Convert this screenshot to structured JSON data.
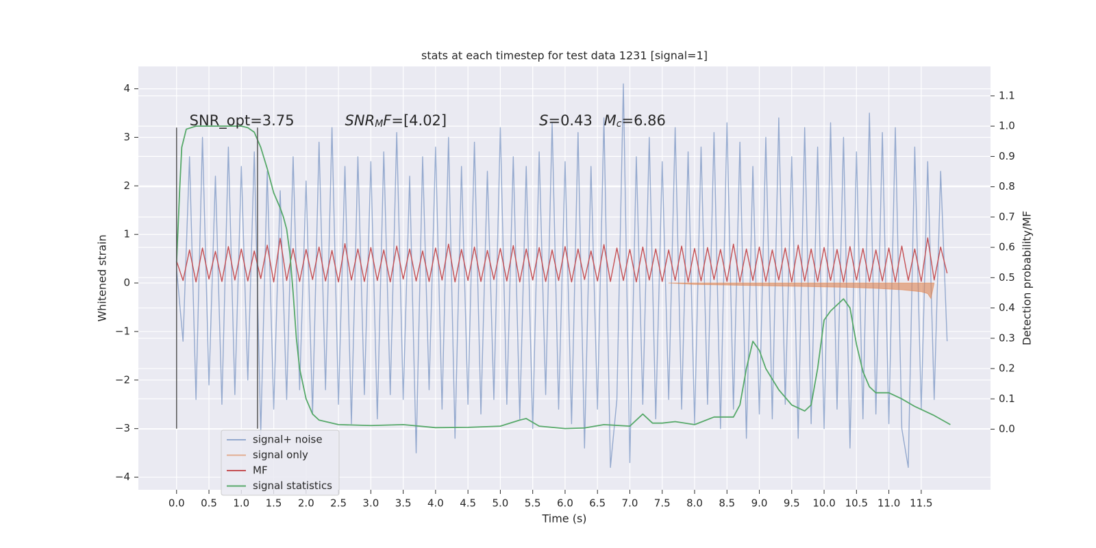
{
  "chart_data": {
    "type": "line",
    "title": "stats at each timestep for test data 1231 [signal=1]",
    "xlabel": "Time (s)",
    "ylabel": "Whitened strain",
    "y2label": "Detection probability/MF",
    "xlim": [
      -0.59,
      12.57
    ],
    "ylim": [
      -4.26,
      4.46
    ],
    "y2lim": [
      -0.2,
      1.197
    ],
    "xticks": [
      {
        "value": 0,
        "label": "0.0"
      },
      0.5,
      {
        "value": 1,
        "label": "1.0"
      },
      1.5,
      {
        "value": 2,
        "label": "2.0"
      },
      2.5,
      {
        "value": 3,
        "label": "3.0"
      },
      3.5,
      {
        "value": 4,
        "label": "4.0"
      },
      4.5,
      {
        "value": 5,
        "label": "5.0"
      },
      5.5,
      {
        "value": 6,
        "label": "6.0"
      },
      6.5,
      {
        "value": 7,
        "label": "7.0"
      },
      7.5,
      {
        "value": 8,
        "label": "8.0"
      },
      8.5,
      {
        "value": 9,
        "label": "9.0"
      },
      9.5,
      {
        "value": 10,
        "label": "10.0"
      },
      10.5,
      {
        "value": 11,
        "label": "11.0"
      },
      11.5
    ],
    "yticks": [
      {
        "value": -4,
        "label": "−4"
      },
      {
        "value": -3,
        "label": "−3"
      },
      {
        "value": -2,
        "label": "−2"
      },
      {
        "value": -1,
        "label": "−1"
      },
      0,
      1,
      2,
      3,
      4
    ],
    "y2ticks": [
      {
        "value": 0,
        "label": "0.0"
      },
      0.1,
      0.2,
      0.3,
      0.4,
      0.5,
      0.6,
      0.7,
      0.8,
      0.9,
      {
        "value": 1,
        "label": "1.0"
      },
      1.1
    ],
    "grid": true,
    "legend": "lower left",
    "x": [
      0,
      0.1,
      0.2,
      0.3,
      0.4,
      0.5,
      0.6,
      0.7,
      0.8,
      0.9,
      1,
      1.1,
      1.2,
      1.3,
      1.4,
      1.5,
      1.6,
      1.7,
      1.8,
      1.9,
      2,
      2.1,
      2.2,
      2.3,
      2.4,
      2.5,
      2.6,
      2.7,
      2.8,
      2.9,
      3,
      3.1,
      3.2,
      3.3,
      3.4,
      3.5,
      3.6,
      3.7,
      3.8,
      3.9,
      4,
      4.1,
      4.2,
      4.3,
      4.4,
      4.5,
      4.6,
      4.7,
      4.8,
      4.9,
      5,
      5.1,
      5.2,
      5.3,
      5.4,
      5.5,
      5.6,
      5.7,
      5.8,
      5.9,
      6,
      6.1,
      6.2,
      6.3,
      6.4,
      6.5,
      6.6,
      6.7,
      6.8,
      6.9,
      7,
      7.1,
      7.2,
      7.3,
      7.4,
      7.5,
      7.6,
      7.7,
      7.8,
      7.9,
      8,
      8.1,
      8.2,
      8.3,
      8.4,
      8.5,
      8.6,
      8.7,
      8.8,
      8.9,
      9,
      9.1,
      9.2,
      9.3,
      9.4,
      9.5,
      9.6,
      9.7,
      9.8,
      9.9,
      10,
      10.1,
      10.2,
      10.3,
      10.4,
      10.5,
      10.6,
      10.7,
      10.8,
      10.9,
      11,
      11.1,
      11.2,
      11.3,
      11.4,
      11.5,
      11.6,
      11.7,
      11.8,
      11.9
    ],
    "series": [
      {
        "name": "signal+ noise",
        "color": "#4c72b0",
        "alpha": 0.55,
        "axis": "y",
        "values": [
          0.3,
          -1.2,
          2.6,
          -2.4,
          3.0,
          -2.1,
          2.2,
          -2.5,
          2.8,
          -2.3,
          2.4,
          -2.0,
          2.7,
          -3.1,
          2.3,
          -2.6,
          1.9,
          -2.4,
          2.6,
          -2.2,
          2.1,
          -2.7,
          2.9,
          -2.2,
          3.2,
          -2.5,
          2.4,
          -2.9,
          2.6,
          -2.3,
          2.5,
          -2.8,
          2.7,
          -2.3,
          3.1,
          -2.4,
          2.2,
          -3.5,
          2.6,
          -2.2,
          2.8,
          -2.6,
          3.0,
          -3.2,
          2.4,
          -2.5,
          2.9,
          -2.7,
          2.3,
          -2.4,
          3.2,
          -2.5,
          2.6,
          -2.8,
          2.4,
          -3.0,
          2.7,
          -2.3,
          3.3,
          -2.6,
          2.5,
          -2.9,
          3.1,
          -3.4,
          2.4,
          -2.6,
          3.4,
          -3.8,
          -2.4,
          4.1,
          -3.7,
          2.6,
          -2.5,
          3.0,
          -2.8,
          2.5,
          -2.4,
          3.2,
          -2.6,
          2.7,
          -2.9,
          2.8,
          -2.5,
          3.1,
          -3.0,
          3.3,
          -2.6,
          2.9,
          -3.2,
          2.4,
          -2.7,
          3.0,
          -2.8,
          3.4,
          -2.5,
          2.6,
          -3.2,
          3.2,
          -2.9,
          2.8,
          -3.0,
          3.3,
          -2.6,
          3.0,
          -3.4,
          2.7,
          -2.8,
          3.5,
          -2.7,
          3.1,
          -2.9,
          3.2,
          -3.0,
          -3.8,
          2.8,
          -2.6,
          2.5,
          -2.4,
          2.3,
          -1.2
        ]
      },
      {
        "name": "signal only",
        "color": "#dd8452",
        "alpha": 0.6,
        "axis": "y",
        "style": "area",
        "x": [
          7.6,
          8.0,
          8.4,
          8.8,
          9.2,
          9.6,
          10.0,
          10.4,
          10.8,
          11.2,
          11.5,
          11.6,
          11.65,
          11.7
        ],
        "values": [
          0,
          -0.03,
          -0.04,
          -0.05,
          -0.06,
          -0.07,
          -0.08,
          -0.09,
          -0.11,
          -0.14,
          -0.18,
          -0.22,
          -0.32,
          0
        ]
      },
      {
        "name": "MF",
        "color": "#c44e52",
        "alpha": 1,
        "axis": "y",
        "values": [
          0.45,
          0.05,
          0.68,
          0.02,
          0.72,
          0.08,
          0.65,
          0.03,
          0.75,
          0.06,
          0.7,
          0.04,
          0.66,
          0.09,
          0.78,
          0.02,
          0.92,
          0.05,
          0.71,
          0.03,
          0.69,
          0.07,
          0.74,
          0.04,
          0.67,
          0.02,
          0.81,
          0.06,
          0.7,
          0.03,
          0.73,
          0.05,
          0.68,
          0.02,
          0.76,
          0.08,
          0.7,
          0.04,
          0.66,
          0.03,
          0.72,
          0.06,
          0.8,
          0.02,
          0.69,
          0.05,
          0.74,
          0.03,
          0.67,
          0.07,
          0.71,
          0.04,
          0.77,
          0.02,
          0.7,
          0.06,
          0.73,
          0.03,
          0.68,
          0.05,
          0.75,
          0.02,
          0.7,
          0.07,
          0.66,
          0.04,
          0.79,
          0.03,
          0.72,
          0.05,
          0.69,
          0.02,
          0.74,
          0.06,
          0.7,
          0.03,
          0.68,
          0.05,
          0.76,
          0.02,
          0.71,
          0.04,
          0.73,
          0.07,
          0.69,
          0.03,
          0.8,
          0.02,
          0.7,
          0.05,
          0.74,
          0.03,
          0.68,
          0.06,
          0.72,
          0.02,
          0.78,
          0.04,
          0.7,
          0.03,
          0.73,
          0.05,
          0.69,
          0.02,
          0.75,
          0.06,
          0.71,
          0.03,
          0.68,
          0.04,
          0.72,
          0.02,
          0.76,
          0.05,
          0.7,
          0.03,
          0.93,
          0.06,
          0.74,
          0.2
        ]
      },
      {
        "name": "signal statistics",
        "color": "#55a868",
        "alpha": 1,
        "axis": "y2",
        "x": [
          0,
          0.05,
          0.08,
          0.15,
          0.3,
          0.5,
          0.8,
          1.0,
          1.1,
          1.2,
          1.3,
          1.4,
          1.5,
          1.6,
          1.65,
          1.7,
          1.75,
          1.8,
          1.85,
          1.9,
          2.0,
          2.1,
          2.2,
          2.5,
          3.0,
          3.5,
          4.0,
          4.5,
          5.0,
          5.3,
          5.4,
          5.6,
          6.0,
          6.3,
          6.6,
          7.0,
          7.2,
          7.35,
          7.5,
          7.7,
          8.0,
          8.3,
          8.6,
          8.7,
          8.8,
          8.9,
          9.0,
          9.1,
          9.3,
          9.5,
          9.7,
          9.8,
          9.9,
          10.0,
          10.1,
          10.2,
          10.3,
          10.4,
          10.5,
          10.6,
          10.7,
          10.8,
          11.0,
          11.2,
          11.4,
          11.7,
          11.95
        ],
        "values": [
          0.55,
          0.8,
          0.93,
          0.99,
          1.0,
          1.0,
          1.0,
          1.0,
          0.995,
          0.98,
          0.93,
          0.86,
          0.78,
          0.73,
          0.7,
          0.66,
          0.58,
          0.45,
          0.3,
          0.2,
          0.1,
          0.05,
          0.03,
          0.015,
          0.012,
          0.015,
          0.005,
          0.006,
          0.01,
          0.03,
          0.035,
          0.01,
          0.002,
          0.004,
          0.015,
          0.01,
          0.05,
          0.02,
          0.02,
          0.025,
          0.015,
          0.04,
          0.04,
          0.08,
          0.2,
          0.29,
          0.26,
          0.2,
          0.13,
          0.08,
          0.06,
          0.08,
          0.2,
          0.36,
          0.39,
          0.41,
          0.43,
          0.4,
          0.28,
          0.19,
          0.14,
          0.12,
          0.12,
          0.1,
          0.075,
          0.045,
          0.015
        ]
      }
    ],
    "vlines": {
      "x": [
        0,
        1.25
      ],
      "ymin": -3,
      "ymax": 3.2,
      "color": "#555555"
    },
    "annotations": [
      {
        "x": 0.2,
        "y": 3.33,
        "parts": [
          {
            "text": "SNR_opt=3.75"
          }
        ]
      },
      {
        "x": 2.6,
        "y": 3.33,
        "parts": [
          {
            "text": "SNR",
            "italic": true
          },
          {
            "text": "M",
            "italic": true,
            "sub": true
          },
          {
            "text": "F",
            "italic": true
          },
          {
            "text": "=[4.02]"
          }
        ]
      },
      {
        "x": 5.6,
        "y": 3.33,
        "parts": [
          {
            "text": "S",
            "italic": true
          },
          {
            "text": "=0.43"
          }
        ]
      },
      {
        "x": 6.6,
        "y": 3.33,
        "parts": [
          {
            "text": "M",
            "italic": true
          },
          {
            "text": "c",
            "italic": true,
            "sub": true
          },
          {
            "text": "=6.86"
          }
        ]
      }
    ]
  }
}
